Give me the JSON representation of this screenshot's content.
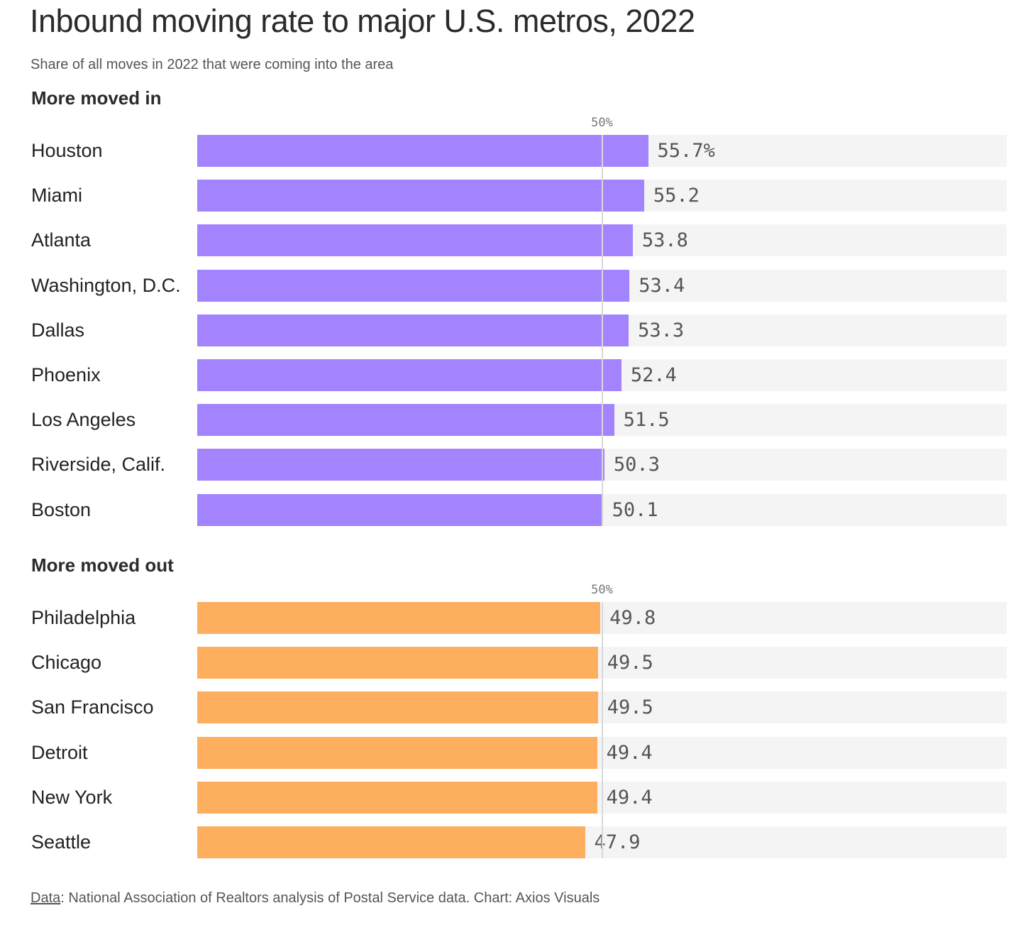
{
  "chart_data": {
    "type": "bar",
    "orientation": "horizontal",
    "title": "Inbound moving rate to major U.S. metros, 2022",
    "subtitle": "Share of all moves in 2022 that were coming into the area",
    "xlim": [
      0,
      100
    ],
    "reference_line": {
      "value": 50,
      "label": "50%"
    },
    "groups": [
      {
        "name": "More moved in",
        "color": "#a384fe",
        "categories": [
          "Houston",
          "Miami",
          "Atlanta",
          "Washington, D.C.",
          "Dallas",
          "Phoenix",
          "Los Angeles",
          "Riverside, Calif.",
          "Boston"
        ],
        "values": [
          55.7,
          55.2,
          53.8,
          53.4,
          53.3,
          52.4,
          51.5,
          50.3,
          50.1
        ],
        "value_labels": [
          "55.7%",
          "55.2",
          "53.8",
          "53.4",
          "53.3",
          "52.4",
          "51.5",
          "50.3",
          "50.1"
        ]
      },
      {
        "name": "More moved out",
        "color": "#fdae5e",
        "categories": [
          "Philadelphia",
          "Chicago",
          "San Francisco",
          "Detroit",
          "New York",
          "Seattle"
        ],
        "values": [
          49.8,
          49.5,
          49.5,
          49.4,
          49.4,
          47.9
        ],
        "value_labels": [
          "49.8",
          "49.5",
          "49.5",
          "49.4",
          "49.4",
          "47.9"
        ]
      }
    ]
  },
  "footer": {
    "source_label": "Data",
    "source_text": ": National Association of Realtors analysis of Postal Service data. Chart: Axios Visuals"
  }
}
